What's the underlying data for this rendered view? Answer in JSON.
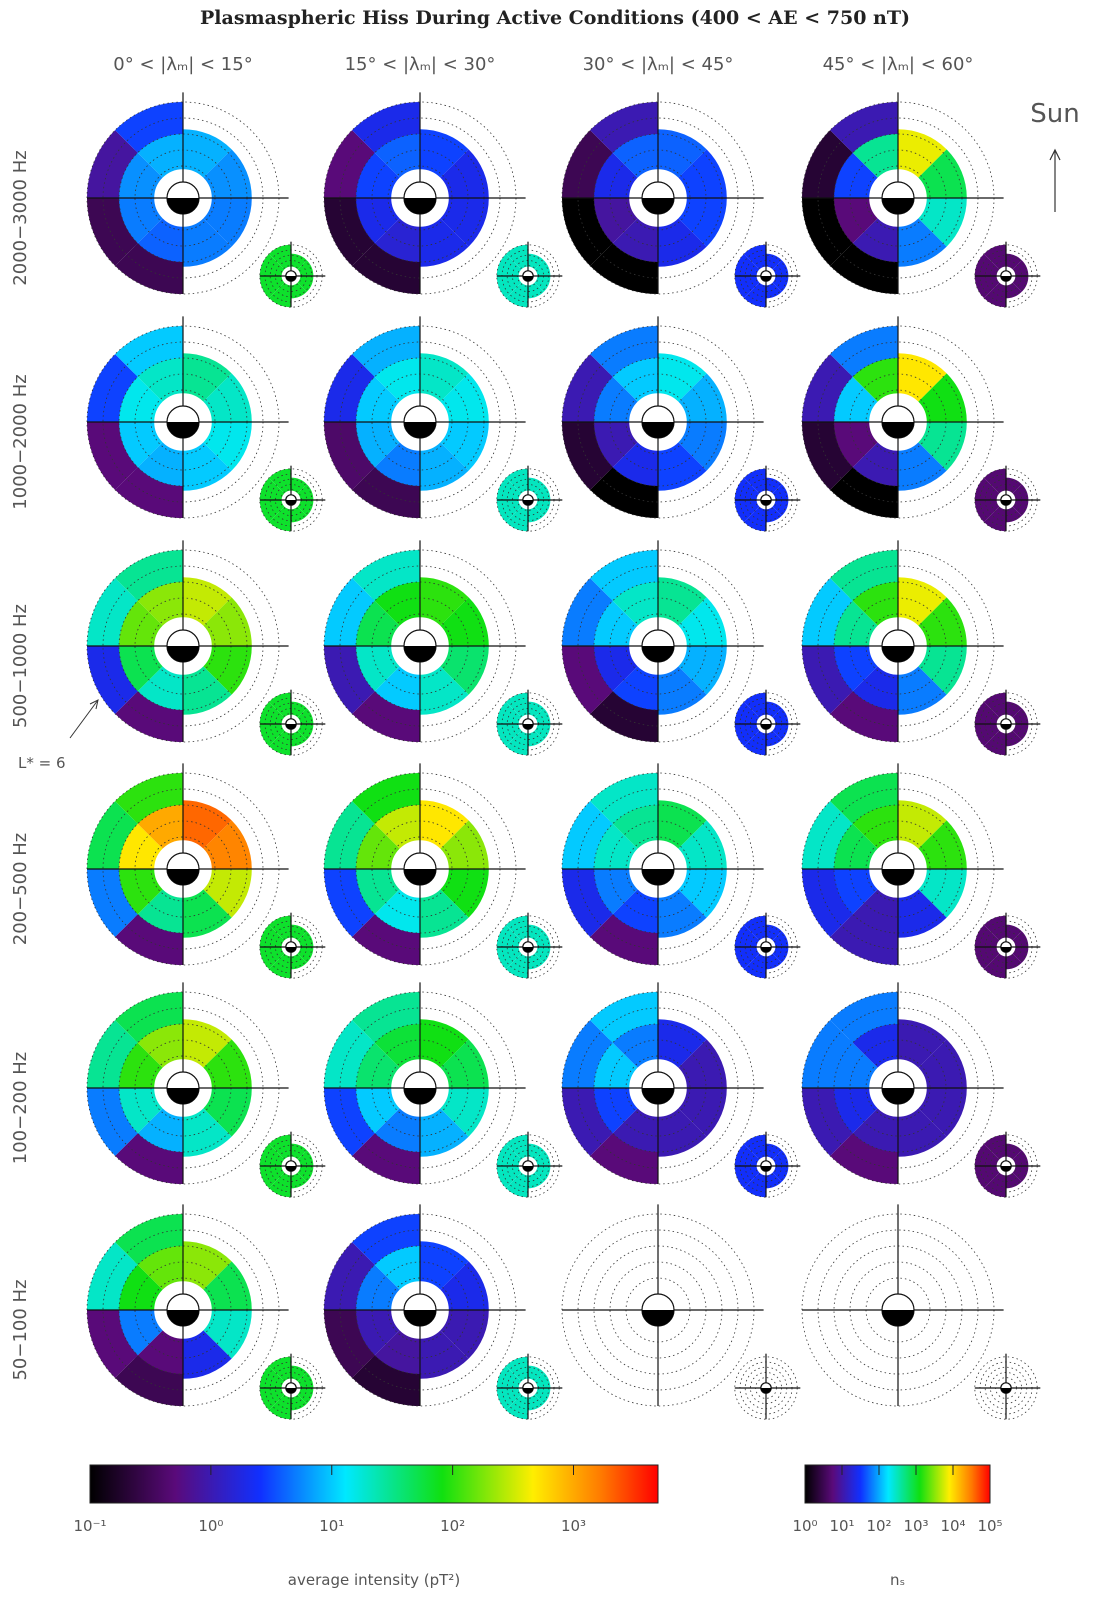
{
  "chart_data": {
    "type": "polar-grid",
    "title": "Plasmaspheric Hiss During Active Conditions (400 < AE < 750 nT)",
    "columns": [
      "0° < |λₘ| < 15°",
      "15° < |λₘ| < 30°",
      "30° < |λₘ| < 45°",
      "45° < |λₘ| < 60°"
    ],
    "rows": [
      "2000−3000 Hz",
      "1000−2000 Hz",
      "500−1000 Hz",
      "200−500 Hz",
      "100−200 Hz",
      "50−100 Hz"
    ],
    "sun_label": "Sun",
    "annotation": "L* = 6",
    "intensity": [
      [
        {
          "inner": [
            8,
            6,
            5,
            5,
            4,
            5,
            6,
            8
          ],
          "outer": [
            null,
            null,
            null,
            null,
            0.3,
            0.3,
            0.8,
            3
          ]
        },
        {
          "inner": [
            3,
            2,
            2,
            2,
            1.5,
            2,
            3,
            4
          ],
          "outer": [
            null,
            null,
            null,
            null,
            0.2,
            0.2,
            0.5,
            2
          ]
        },
        {
          "inner": [
            4,
            3,
            3,
            2,
            1,
            0.8,
            2,
            4
          ],
          "outer": [
            null,
            null,
            null,
            null,
            0.1,
            0.1,
            0.3,
            1
          ]
        },
        {
          "inner": [
            400,
            50,
            20,
            5,
            1,
            0.5,
            3,
            30
          ],
          "outer": [
            null,
            null,
            null,
            null,
            0.1,
            0.1,
            0.2,
            1
          ]
        }
      ],
      [
        {
          "inner": [
            30,
            20,
            15,
            10,
            8,
            10,
            15,
            20
          ],
          "outer": [
            null,
            null,
            null,
            null,
            0.5,
            0.5,
            3,
            10
          ]
        },
        {
          "inner": [
            20,
            15,
            10,
            8,
            5,
            8,
            10,
            15
          ],
          "outer": [
            null,
            null,
            null,
            null,
            0.3,
            0.4,
            2,
            8
          ]
        },
        {
          "inner": [
            15,
            8,
            5,
            3,
            2,
            1,
            5,
            10
          ],
          "outer": [
            null,
            null,
            null,
            null,
            0.1,
            0.2,
            1,
            5
          ]
        },
        {
          "inner": [
            500,
            80,
            30,
            5,
            1,
            0.5,
            10,
            100
          ],
          "outer": [
            null,
            null,
            null,
            null,
            0.1,
            0.2,
            1,
            5
          ]
        }
      ],
      [
        {
          "inner": [
            300,
            200,
            100,
            30,
            20,
            50,
            150,
            200
          ],
          "outer": [
            null,
            null,
            null,
            null,
            0.5,
            2,
            20,
            30
          ]
        },
        {
          "inner": [
            100,
            80,
            40,
            20,
            10,
            20,
            50,
            80
          ],
          "outer": [
            null,
            null,
            null,
            null,
            0.5,
            1,
            10,
            20
          ]
        },
        {
          "inner": [
            30,
            15,
            8,
            5,
            3,
            2,
            10,
            20
          ],
          "outer": [
            null,
            null,
            null,
            null,
            0.2,
            0.5,
            5,
            10
          ]
        },
        {
          "inner": [
            400,
            100,
            30,
            5,
            2,
            3,
            30,
            100
          ],
          "outer": [
            null,
            null,
            null,
            null,
            0.5,
            1,
            10,
            30
          ]
        }
      ],
      [
        {
          "inner": [
            2000,
            1500,
            300,
            50,
            30,
            100,
            500,
            1000
          ],
          "outer": [
            null,
            null,
            null,
            null,
            0.5,
            5,
            50,
            100
          ]
        },
        {
          "inner": [
            500,
            200,
            80,
            30,
            15,
            30,
            150,
            300
          ],
          "outer": [
            null,
            null,
            null,
            null,
            0.5,
            3,
            30,
            80
          ]
        },
        {
          "inner": [
            50,
            20,
            10,
            5,
            3,
            5,
            20,
            30
          ],
          "outer": [
            null,
            null,
            null,
            null,
            0.5,
            2,
            10,
            20
          ]
        },
        {
          "inner": [
            300,
            100,
            20,
            2,
            1,
            3,
            50,
            100
          ],
          "outer": [
            null,
            null,
            null,
            null,
            1,
            2,
            20,
            50
          ]
        }
      ],
      [
        {
          "inner": [
            300,
            100,
            50,
            20,
            8,
            20,
            100,
            200
          ],
          "outer": [
            null,
            null,
            null,
            null,
            0.5,
            5,
            30,
            50
          ]
        },
        {
          "inner": [
            80,
            50,
            20,
            8,
            5,
            10,
            40,
            60
          ],
          "outer": [
            null,
            null,
            null,
            null,
            0.5,
            3,
            20,
            30
          ]
        },
        {
          "inner": [
            2,
            1,
            1,
            1,
            1,
            3,
            10,
            5
          ],
          "outer": [
            null,
            null,
            null,
            null,
            0.5,
            1,
            5,
            10
          ]
        },
        {
          "inner": [
            1,
            1,
            1,
            1,
            1,
            2,
            5,
            2
          ],
          "outer": [
            null,
            null,
            null,
            null,
            0.5,
            1,
            5,
            5
          ]
        }
      ],
      [
        {
          "inner": [
            200,
            50,
            20,
            2,
            0.5,
            5,
            80,
            150
          ],
          "outer": [
            null,
            null,
            null,
            null,
            0.3,
            0.5,
            20,
            50
          ]
        },
        {
          "inner": [
            3,
            2,
            1,
            1,
            0.8,
            1,
            5,
            10
          ],
          "outer": [
            null,
            null,
            null,
            null,
            0.2,
            0.3,
            1,
            3
          ]
        },
        null,
        null
      ]
    ],
    "counts": [
      [
        1000,
        300,
        30,
        5
      ],
      [
        1000,
        300,
        30,
        5
      ],
      [
        1000,
        300,
        30,
        5
      ],
      [
        1000,
        300,
        30,
        5
      ],
      [
        1000,
        300,
        30,
        5
      ],
      [
        1000,
        300,
        null,
        null
      ]
    ],
    "colorbar": {
      "label": "average intensity (pT²)",
      "log": true,
      "lim": [
        0.1,
        5000
      ],
      "ticks": [
        {
          "value": 0.1,
          "label": "10⁻¹"
        },
        {
          "value": 1,
          "label": "10⁰"
        },
        {
          "value": 10,
          "label": "10¹"
        },
        {
          "value": 100,
          "label": "10²"
        },
        {
          "value": 1000,
          "label": "10³"
        }
      ]
    },
    "count_colorbar": {
      "label": "nₛ",
      "log": true,
      "lim": [
        1,
        100000
      ],
      "ticks": [
        {
          "value": 1,
          "label": "10⁰"
        },
        {
          "value": 10,
          "label": "10¹"
        },
        {
          "value": 100,
          "label": "10²"
        },
        {
          "value": 1000,
          "label": "10³"
        },
        {
          "value": 10000,
          "label": "10⁴"
        },
        {
          "value": 100000,
          "label": "10⁵"
        }
      ]
    }
  }
}
